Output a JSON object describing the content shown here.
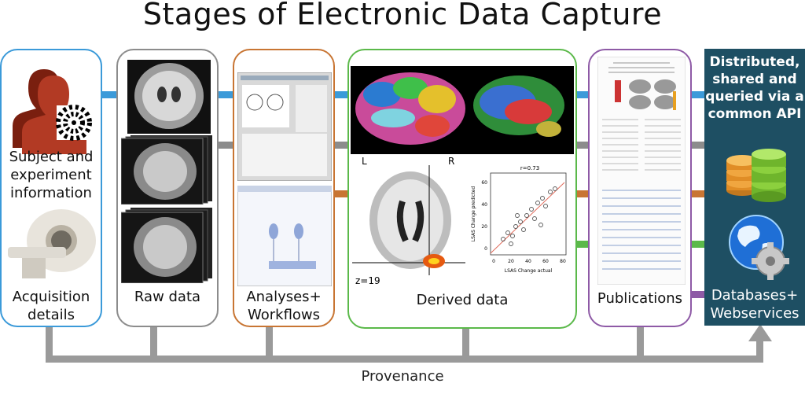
{
  "title": "Stages of Electronic Data Capture",
  "stages": {
    "subject": {
      "top_label": "Subject and experiment information",
      "bottom_label": "Acquisition details"
    },
    "raw": {
      "label": "Raw data"
    },
    "analyses": {
      "label": "Analyses+ Workflows"
    },
    "derived": {
      "label": "Derived data",
      "brain_left": "L",
      "brain_right": "R",
      "slice": "z=19",
      "scatter_title": "r=0.73",
      "scatter_xlabel": "LSAS Change actual",
      "scatter_ylabel": "LSAS Change predicted",
      "scatter_xticks": [
        "0",
        "20",
        "40",
        "60",
        "80"
      ],
      "scatter_yticks": [
        "0",
        "20",
        "40",
        "60"
      ]
    },
    "publications": {
      "label": "Publications"
    },
    "databases": {
      "top_label": "Distributed, shared and queried via a common API",
      "bottom_label": "Databases+ Webservices"
    }
  },
  "provenance_label": "Provenance",
  "colors": {
    "subject": "#3b9ad9",
    "raw": "#8c8c8c",
    "analyses": "#c87533",
    "derived": "#5bb94a",
    "publications": "#8e5aa6",
    "databases_bg": "#1e4f63",
    "provenance": "#9a9a9a"
  },
  "icons": [
    "person-silhouette-icon",
    "mri-scanner-icon",
    "database-cylinders-icon",
    "globe-gear-icon"
  ]
}
